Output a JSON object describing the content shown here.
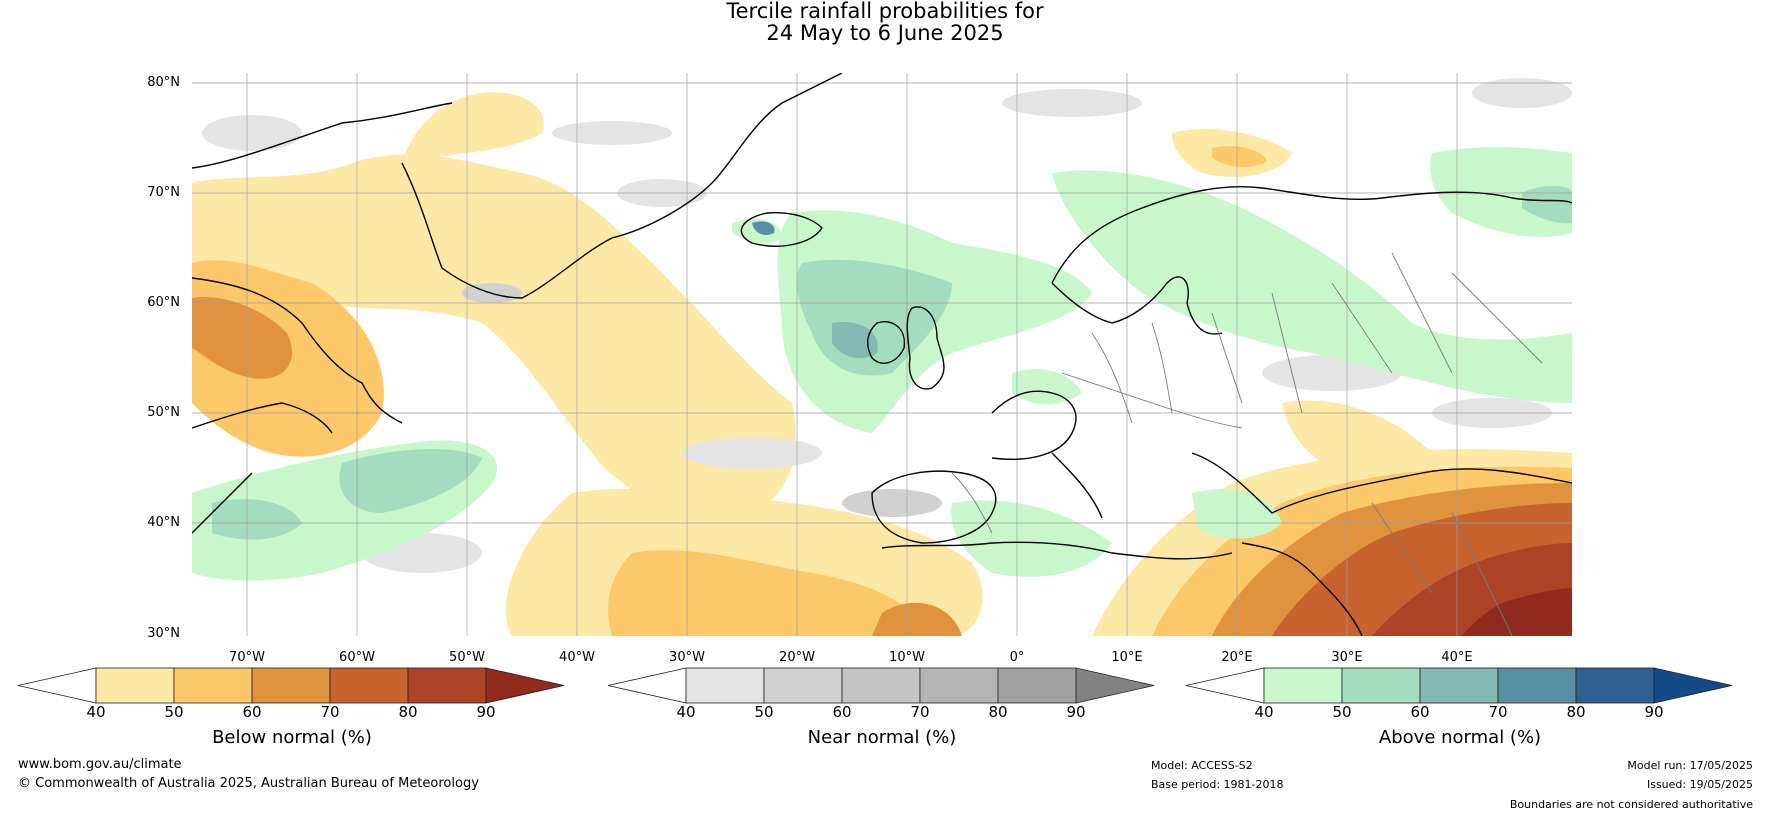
{
  "title": {
    "line1": "Tercile rainfall probabilities for",
    "line2": "24 May to 6 June 2025"
  },
  "map": {
    "lat_labels": [
      "80°N",
      "70°N",
      "60°N",
      "50°N",
      "40°N",
      "30°N"
    ],
    "lon_labels": [
      "70°W",
      "60°W",
      "50°W",
      "40°W",
      "30°W",
      "20°W",
      "10°W",
      "0°",
      "10°E",
      "20°E",
      "30°E",
      "40°E"
    ],
    "extent": {
      "lon": [
        -75,
        50
      ],
      "lat": [
        30,
        81
      ]
    }
  },
  "legends": [
    {
      "title": "Below normal (%)",
      "ticks": [
        "40",
        "50",
        "60",
        "70",
        "80",
        "90"
      ],
      "colors": [
        "#ffffff",
        "#fde9a6",
        "#fcc86a",
        "#e0923e",
        "#c8622f",
        "#ac4327",
        "#8f2a1c"
      ]
    },
    {
      "title": "Near normal (%)",
      "ticks": [
        "40",
        "50",
        "60",
        "70",
        "80",
        "90"
      ],
      "colors": [
        "#ffffff",
        "#e4e4e4",
        "#d1d1d1",
        "#c4c4c4",
        "#b4b4b4",
        "#a0a0a0",
        "#828282"
      ]
    },
    {
      "title": "Above normal (%)",
      "ticks": [
        "40",
        "50",
        "60",
        "70",
        "80",
        "90"
      ],
      "colors": [
        "#ffffff",
        "#c8f7cc",
        "#a4dcbf",
        "#82b9b1",
        "#5a90a4",
        "#2f5e93",
        "#144a87"
      ]
    }
  ],
  "footer": {
    "website": "www.bom.gov.au/climate",
    "copyright": "© Commonwealth of Australia 2025, Australian Bureau of Meteorology",
    "model": "Model: ACCESS-S2",
    "base_period": "Base period: 1981-2018",
    "model_run": "Model run: 17/05/2025",
    "issued": "Issued: 19/05/2025",
    "disclaimer": "Boundaries are not considered authoritative"
  }
}
